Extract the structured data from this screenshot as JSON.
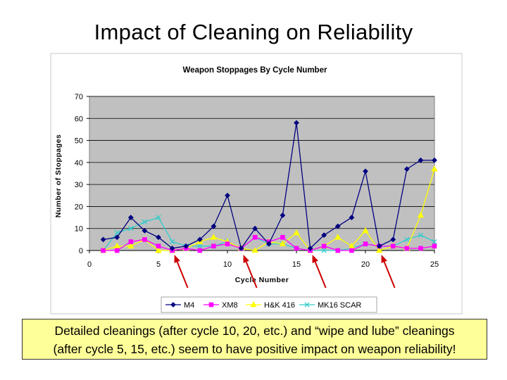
{
  "slide": {
    "title": "Impact of Cleaning on Reliability",
    "caption_line1": "Detailed cleanings (after cycle 10, 20, etc.) and “wipe and lube” cleanings",
    "caption_line2": "(after cycle 5, 15, etc.) seem to have positive impact on weapon reliability!"
  },
  "chart_data": {
    "type": "line",
    "title": "Weapon Stoppages By Cycle Number",
    "xlabel": "Cycle Number",
    "ylabel": "Number of Stoppages",
    "xlim": [
      0,
      25
    ],
    "ylim": [
      0,
      70
    ],
    "xticks": [
      0,
      5,
      10,
      15,
      20,
      25
    ],
    "yticks": [
      0,
      10,
      20,
      30,
      40,
      50,
      60,
      70
    ],
    "x": [
      1,
      2,
      3,
      4,
      5,
      6,
      7,
      8,
      9,
      10,
      11,
      12,
      13,
      14,
      15,
      16,
      17,
      18,
      19,
      20,
      21,
      22,
      23,
      24,
      25
    ],
    "series": [
      {
        "name": "M4",
        "color": "#000080",
        "marker": "diamond",
        "values": [
          5,
          6,
          15,
          9,
          6,
          1,
          2,
          5,
          11,
          25,
          1,
          10,
          3,
          16,
          58,
          1,
          7,
          11,
          15,
          36,
          2,
          5,
          37,
          41,
          41
        ]
      },
      {
        "name": "XM8",
        "color": "#ff00ff",
        "marker": "square",
        "values": [
          0,
          0,
          4,
          5,
          2,
          0,
          1,
          0,
          2,
          3,
          1,
          6,
          4,
          6,
          1,
          0,
          2,
          0,
          0,
          3,
          2,
          2,
          1,
          1,
          2
        ]
      },
      {
        "name": "H&K 416",
        "color": "#ffff00",
        "marker": "triangle",
        "values": [
          0,
          2,
          2,
          5,
          0,
          0,
          1,
          4,
          6,
          4,
          1,
          0,
          4,
          3,
          8,
          0,
          2,
          6,
          2,
          9,
          0,
          2,
          1,
          16,
          37
        ]
      },
      {
        "name": "MK16 SCAR",
        "color": "#33cccc",
        "marker": "x",
        "values": [
          0,
          8,
          10,
          13,
          15,
          4,
          2,
          2,
          2,
          4,
          1,
          6,
          3,
          3,
          1,
          0,
          0,
          0,
          1,
          3,
          2,
          2,
          5,
          7,
          4
        ]
      }
    ],
    "legend_position": "bottom",
    "grid": "horizontal",
    "annotations": {
      "arrows_at_x": [
        6,
        11,
        16,
        21
      ],
      "arrow_color": "#cc0000"
    }
  }
}
